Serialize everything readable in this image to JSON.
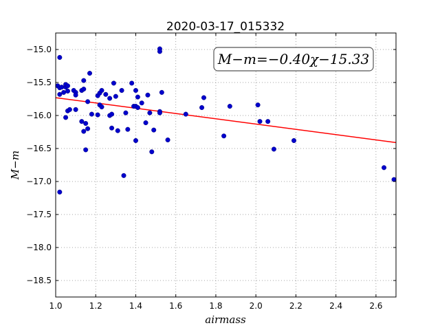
{
  "chart_data": {
    "type": "scatter",
    "title": "2020-03-17_015332",
    "xlabel": "airmass",
    "ylabel": "M−m",
    "xlim": [
      1.0,
      2.7
    ],
    "ylim": [
      -18.75,
      -14.75
    ],
    "y_inverted": true,
    "grid": true,
    "x_ticks": [
      "1.0",
      "1.2",
      "1.4",
      "1.6",
      "1.8",
      "2.0",
      "2.2",
      "2.4",
      "2.6"
    ],
    "y_ticks": [
      "−15.0",
      "−15.5",
      "−16.0",
      "−16.5",
      "−17.0",
      "−17.5",
      "−18.0",
      "−18.5"
    ],
    "annotation": "M−m=−0.40χ−15.33",
    "fit_line": {
      "slope": -0.4,
      "intercept": -15.33,
      "color": "#ff0000"
    },
    "point_color": "#0000cc",
    "points": [
      [
        1.01,
        -15.55
      ],
      [
        1.02,
        -15.12
      ],
      [
        1.02,
        -15.58
      ],
      [
        1.03,
        -15.57
      ],
      [
        1.02,
        -15.68
      ],
      [
        1.04,
        -15.65
      ],
      [
        1.05,
        -15.57
      ],
      [
        1.05,
        -15.53
      ],
      [
        1.06,
        -15.55
      ],
      [
        1.06,
        -15.63
      ],
      [
        1.05,
        -16.03
      ],
      [
        1.06,
        -15.93
      ],
      [
        1.07,
        -15.91
      ],
      [
        1.09,
        -15.62
      ],
      [
        1.1,
        -15.65
      ],
      [
        1.1,
        -15.69
      ],
      [
        1.1,
        -15.91
      ],
      [
        1.02,
        -17.16
      ],
      [
        1.13,
        -15.62
      ],
      [
        1.14,
        -15.6
      ],
      [
        1.14,
        -15.47
      ],
      [
        1.13,
        -16.09
      ],
      [
        1.14,
        -16.24
      ],
      [
        1.15,
        -16.12
      ],
      [
        1.16,
        -16.2
      ],
      [
        1.15,
        -16.52
      ],
      [
        1.16,
        -15.79
      ],
      [
        1.17,
        -15.36
      ],
      [
        1.18,
        -15.98
      ],
      [
        1.21,
        -15.99
      ],
      [
        1.21,
        -15.7
      ],
      [
        1.22,
        -15.66
      ],
      [
        1.22,
        -15.84
      ],
      [
        1.23,
        -15.87
      ],
      [
        1.23,
        -15.62
      ],
      [
        1.25,
        -15.68
      ],
      [
        1.27,
        -15.74
      ],
      [
        1.27,
        -16.0
      ],
      [
        1.28,
        -15.98
      ],
      [
        1.28,
        -16.19
      ],
      [
        1.29,
        -15.51
      ],
      [
        1.3,
        -15.71
      ],
      [
        1.31,
        -16.23
      ],
      [
        1.33,
        -15.62
      ],
      [
        1.34,
        -16.91
      ],
      [
        1.35,
        -15.96
      ],
      [
        1.36,
        -16.21
      ],
      [
        1.38,
        -15.51
      ],
      [
        1.39,
        -15.86
      ],
      [
        1.4,
        -15.86
      ],
      [
        1.4,
        -15.62
      ],
      [
        1.4,
        -16.38
      ],
      [
        1.41,
        -15.72
      ],
      [
        1.41,
        -15.88
      ],
      [
        1.43,
        -15.81
      ],
      [
        1.45,
        -16.11
      ],
      [
        1.46,
        -15.69
      ],
      [
        1.47,
        -15.96
      ],
      [
        1.48,
        -16.55
      ],
      [
        1.49,
        -16.22
      ],
      [
        1.52,
        -14.99
      ],
      [
        1.52,
        -15.03
      ],
      [
        1.52,
        -15.94
      ],
      [
        1.52,
        -15.96
      ],
      [
        1.53,
        -15.65
      ],
      [
        1.56,
        -16.37
      ],
      [
        1.65,
        -15.98
      ],
      [
        1.73,
        -15.88
      ],
      [
        1.74,
        -15.73
      ],
      [
        1.84,
        -16.31
      ],
      [
        1.87,
        -15.86
      ],
      [
        2.01,
        -15.84
      ],
      [
        2.02,
        -16.09
      ],
      [
        2.06,
        -16.09
      ],
      [
        2.09,
        -16.51
      ],
      [
        2.19,
        -16.38
      ],
      [
        2.64,
        -16.79
      ],
      [
        2.69,
        -16.97
      ]
    ]
  }
}
